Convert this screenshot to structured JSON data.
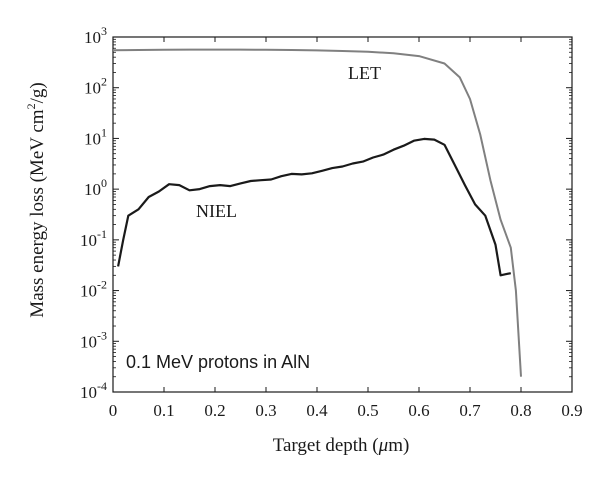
{
  "chart_data": {
    "type": "line",
    "xlabel": "Target depth (μm)",
    "xlabel_parts": [
      "Target depth (",
      "μ",
      "m)"
    ],
    "ylabel": "Mass energy loss (MeV cm²/g)",
    "ylabel_parts": [
      "Mass energy loss (MeV cm",
      "2",
      "/g)"
    ],
    "annotation": "0.1 MeV protons in AlN",
    "xlim": [
      0,
      0.9
    ],
    "ylim": [
      0.0001,
      1000
    ],
    "y_scale": "log",
    "x_ticks": [
      "0",
      "0.1",
      "0.2",
      "0.3",
      "0.4",
      "0.5",
      "0.6",
      "0.7",
      "0.8",
      "0.9"
    ],
    "x_tick_values": [
      0,
      0.1,
      0.2,
      0.3,
      0.4,
      0.5,
      0.6,
      0.7,
      0.8,
      0.9
    ],
    "y_ticks": [
      {
        "base": "10",
        "exp": "-4",
        "value": 0.0001
      },
      {
        "base": "10",
        "exp": "-3",
        "value": 0.001
      },
      {
        "base": "10",
        "exp": "-2",
        "value": 0.01
      },
      {
        "base": "10",
        "exp": "-1",
        "value": 0.1
      },
      {
        "base": "10",
        "exp": "0",
        "value": 1
      },
      {
        "base": "10",
        "exp": "1",
        "value": 10
      },
      {
        "base": "10",
        "exp": "2",
        "value": 100
      },
      {
        "base": "10",
        "exp": "3",
        "value": 1000
      }
    ],
    "grid": false,
    "series": [
      {
        "name": "LET",
        "color": "#808080",
        "x": [
          0.0,
          0.05,
          0.1,
          0.15,
          0.2,
          0.25,
          0.3,
          0.35,
          0.4,
          0.45,
          0.5,
          0.55,
          0.6,
          0.65,
          0.68,
          0.7,
          0.72,
          0.74,
          0.76,
          0.78,
          0.79,
          0.8
        ],
        "y": [
          550,
          555,
          560,
          565,
          565,
          565,
          560,
          555,
          545,
          530,
          510,
          480,
          420,
          300,
          160,
          60,
          12,
          1.5,
          0.25,
          0.07,
          0.01,
          0.0002
        ]
      },
      {
        "name": "NIEL",
        "color": "#1a1a1a",
        "x": [
          0.01,
          0.02,
          0.03,
          0.05,
          0.07,
          0.09,
          0.11,
          0.13,
          0.15,
          0.17,
          0.19,
          0.21,
          0.23,
          0.25,
          0.27,
          0.29,
          0.31,
          0.33,
          0.35,
          0.37,
          0.39,
          0.41,
          0.43,
          0.45,
          0.47,
          0.49,
          0.51,
          0.53,
          0.55,
          0.57,
          0.59,
          0.61,
          0.63,
          0.65,
          0.67,
          0.69,
          0.71,
          0.73,
          0.75,
          0.76,
          0.77,
          0.78
        ],
        "y": [
          0.03,
          0.1,
          0.3,
          0.4,
          0.7,
          0.9,
          1.25,
          1.2,
          0.95,
          1.0,
          1.15,
          1.2,
          1.15,
          1.3,
          1.45,
          1.5,
          1.55,
          1.8,
          2.0,
          1.95,
          2.05,
          2.3,
          2.6,
          2.8,
          3.2,
          3.5,
          4.2,
          4.8,
          6.0,
          7.2,
          9.0,
          9.8,
          9.5,
          7.5,
          3.0,
          1.2,
          0.5,
          0.3,
          0.08,
          0.02,
          0.021,
          0.022
        ]
      }
    ]
  }
}
